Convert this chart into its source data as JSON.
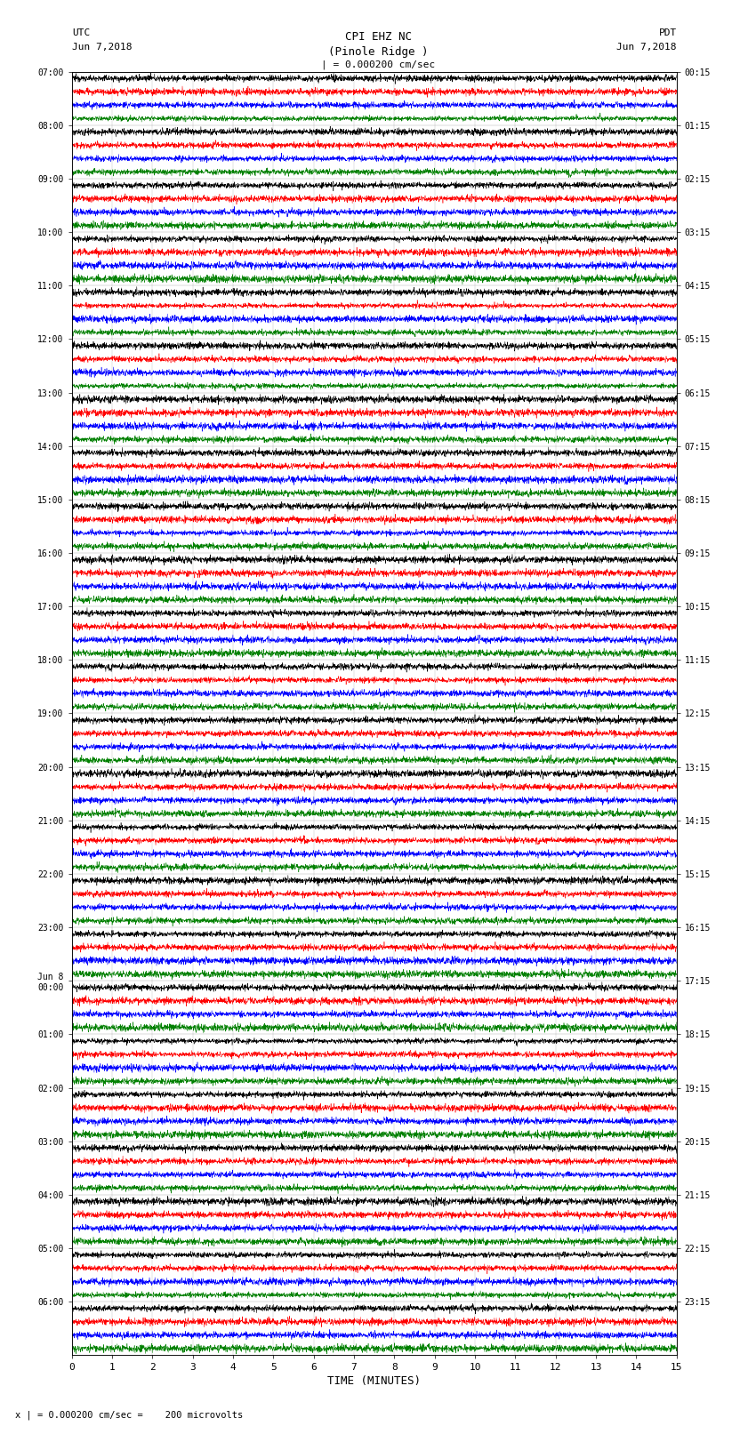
{
  "title_line1": "CPI EHZ NC",
  "title_line2": "(Pinole Ridge )",
  "scale_label": "| = 0.000200 cm/sec",
  "xlabel": "TIME (MINUTES)",
  "footer": "x | = 0.000200 cm/sec =    200 microvolts",
  "xlim": [
    0,
    15
  ],
  "xticks": [
    0,
    1,
    2,
    3,
    4,
    5,
    6,
    7,
    8,
    9,
    10,
    11,
    12,
    13,
    14,
    15
  ],
  "colors": [
    "black",
    "red",
    "blue",
    "green"
  ],
  "utc_times_labeled": [
    "07:00",
    "08:00",
    "09:00",
    "10:00",
    "11:00",
    "12:00",
    "13:00",
    "14:00",
    "15:00",
    "16:00",
    "17:00",
    "18:00",
    "19:00",
    "20:00",
    "21:00",
    "22:00",
    "23:00",
    "Jun 8\n00:00",
    "01:00",
    "02:00",
    "03:00",
    "04:00",
    "05:00",
    "06:00"
  ],
  "pdt_times_labeled": [
    "00:15",
    "01:15",
    "02:15",
    "03:15",
    "04:15",
    "05:15",
    "06:15",
    "07:15",
    "08:15",
    "09:15",
    "10:15",
    "11:15",
    "12:15",
    "13:15",
    "14:15",
    "15:15",
    "16:15",
    "17:15",
    "18:15",
    "19:15",
    "20:15",
    "21:15",
    "22:15",
    "23:15"
  ],
  "num_groups": 24,
  "traces_per_group": 4,
  "bg_color": "white",
  "fig_width": 8.5,
  "fig_height": 16.13,
  "noise_seed": 42,
  "amplitude_base": 0.3,
  "lw": 0.35,
  "num_samples": 3000,
  "utc_label_top": "UTC",
  "utc_date_top": "Jun 7,2018",
  "pdt_label_top": "PDT",
  "pdt_date_top": "Jun 7,2018"
}
